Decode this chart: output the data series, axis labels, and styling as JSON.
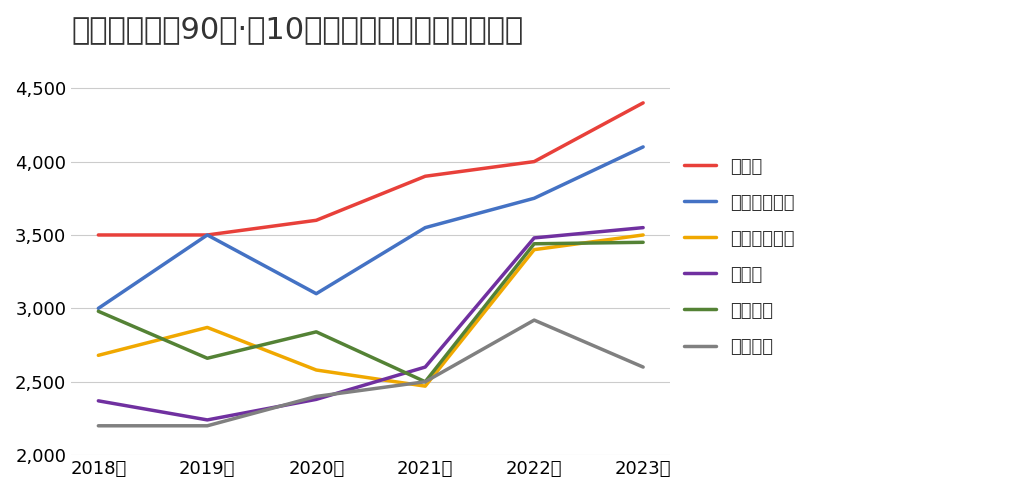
{
  "title": "福岡市周辺の90㎡·築10年のマンションの平均価格",
  "years": [
    2018,
    2019,
    2020,
    2021,
    2022,
    2023
  ],
  "x_labels": [
    "2018年",
    "2019年",
    "2020年",
    "2021年",
    "2022年",
    "2023年"
  ],
  "series": [
    {
      "name": "福岡市",
      "color": "#e8403a",
      "values": [
        3500,
        3500,
        3600,
        3900,
        4000,
        4400
      ]
    },
    {
      "name": "糟屋郡新宮町",
      "color": "#4472c4",
      "values": [
        3000,
        3500,
        3100,
        3550,
        3750,
        4100
      ]
    },
    {
      "name": "糟屋郡粕屋町",
      "color": "#f0a800",
      "values": [
        2680,
        2870,
        2580,
        2470,
        3400,
        3500
      ]
    },
    {
      "name": "春日市",
      "color": "#7030a0",
      "values": [
        2370,
        2240,
        2380,
        2600,
        3480,
        3550
      ]
    },
    {
      "name": "大野城市",
      "color": "#548235",
      "values": [
        2980,
        2660,
        2840,
        2500,
        3440,
        3450
      ]
    },
    {
      "name": "那珂川市",
      "color": "#808080",
      "values": [
        2200,
        2200,
        2400,
        2500,
        2920,
        2600
      ]
    }
  ],
  "ylim": [
    2000,
    4700
  ],
  "yticks": [
    2000,
    2500,
    3000,
    3500,
    4000,
    4500
  ],
  "background_color": "#ffffff",
  "grid_color": "#cccccc",
  "line_width": 2.5,
  "title_fontsize": 22,
  "tick_fontsize": 13,
  "legend_fontsize": 13
}
